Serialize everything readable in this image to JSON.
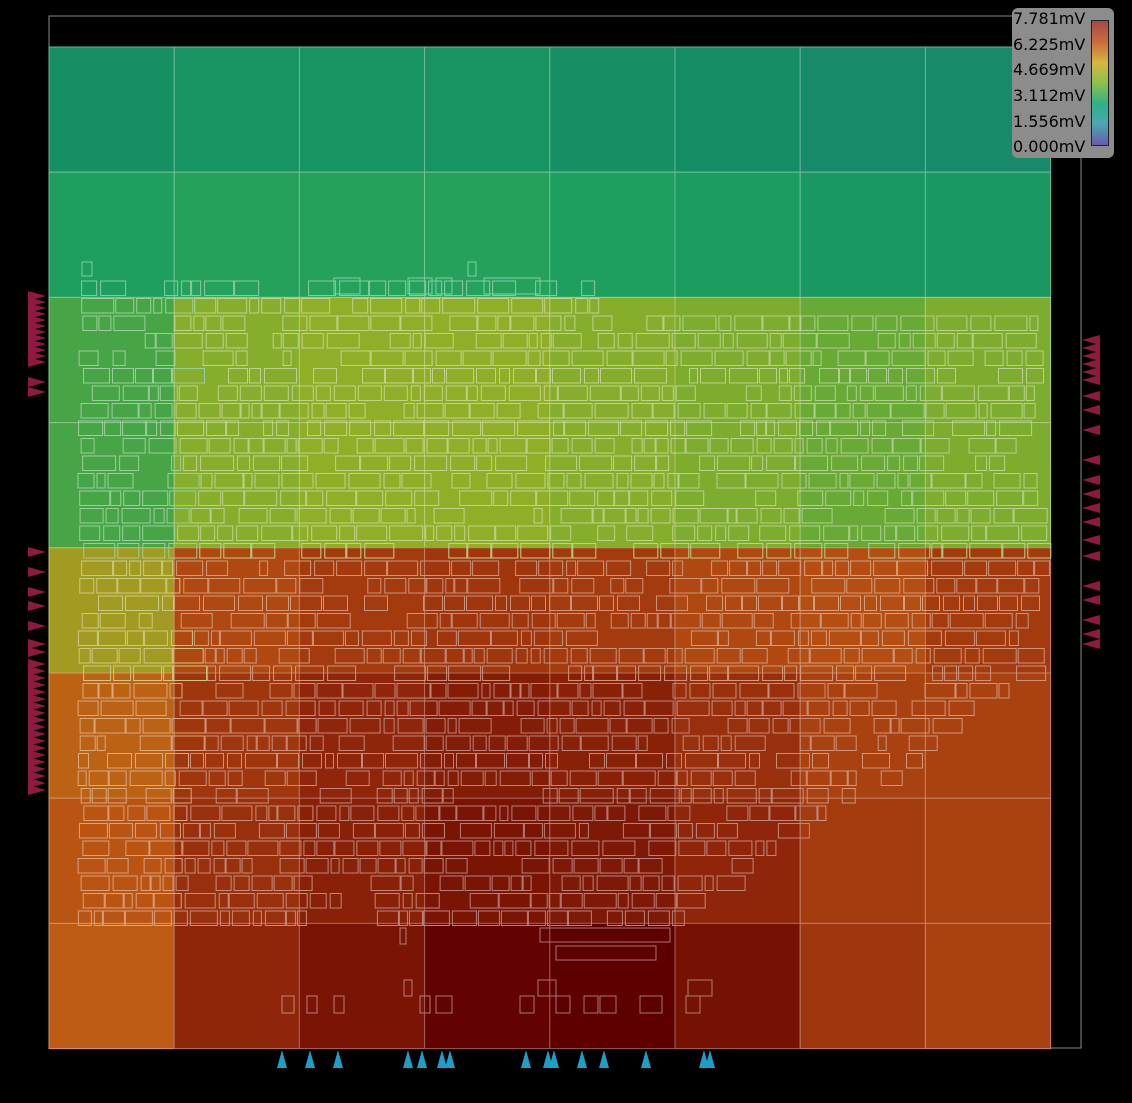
{
  "legend": {
    "labels": [
      "7.781mV",
      "6.225mV",
      "4.669mV",
      "3.112mV",
      "1.556mV",
      "0.000mV"
    ],
    "gradient_colors": [
      "#a64a4a",
      "#c96a3a",
      "#d6b640",
      "#8fc24a",
      "#2fb08a",
      "#4aa8b0",
      "#6a5aa8"
    ]
  },
  "heatmap": {
    "unit": "mV",
    "max": 7.781,
    "min": 0.0,
    "rows": [
      [
        3.0,
        3.1,
        3.1,
        3.1,
        3.0,
        2.9,
        2.8,
        2.8
      ],
      [
        3.4,
        3.5,
        3.5,
        3.5,
        3.4,
        3.3,
        3.2,
        3.2
      ],
      [
        3.9,
        4.6,
        4.7,
        4.7,
        4.6,
        4.5,
        4.3,
        4.5
      ],
      [
        3.9,
        4.6,
        4.7,
        4.7,
        4.6,
        4.5,
        4.3,
        4.5
      ],
      [
        5.0,
        6.2,
        6.4,
        6.5,
        6.4,
        6.2,
        6.1,
        6.4
      ],
      [
        5.8,
        6.5,
        6.8,
        7.0,
        6.9,
        6.6,
        6.3,
        6.3
      ],
      [
        6.0,
        6.6,
        6.9,
        7.2,
        7.1,
        6.8,
        6.4,
        6.3
      ],
      [
        5.9,
        6.8,
        7.2,
        7.7,
        7.8,
        7.3,
        6.5,
        6.3
      ]
    ]
  },
  "pins": {
    "left_color": "#8e1a44",
    "right_color": "#8e1a44",
    "bottom_color": "#1e9ec4",
    "left_count": 42,
    "right_count": 20,
    "bottom_count": 16
  },
  "colors": {
    "background": "#000000",
    "die_border": "#888888"
  }
}
